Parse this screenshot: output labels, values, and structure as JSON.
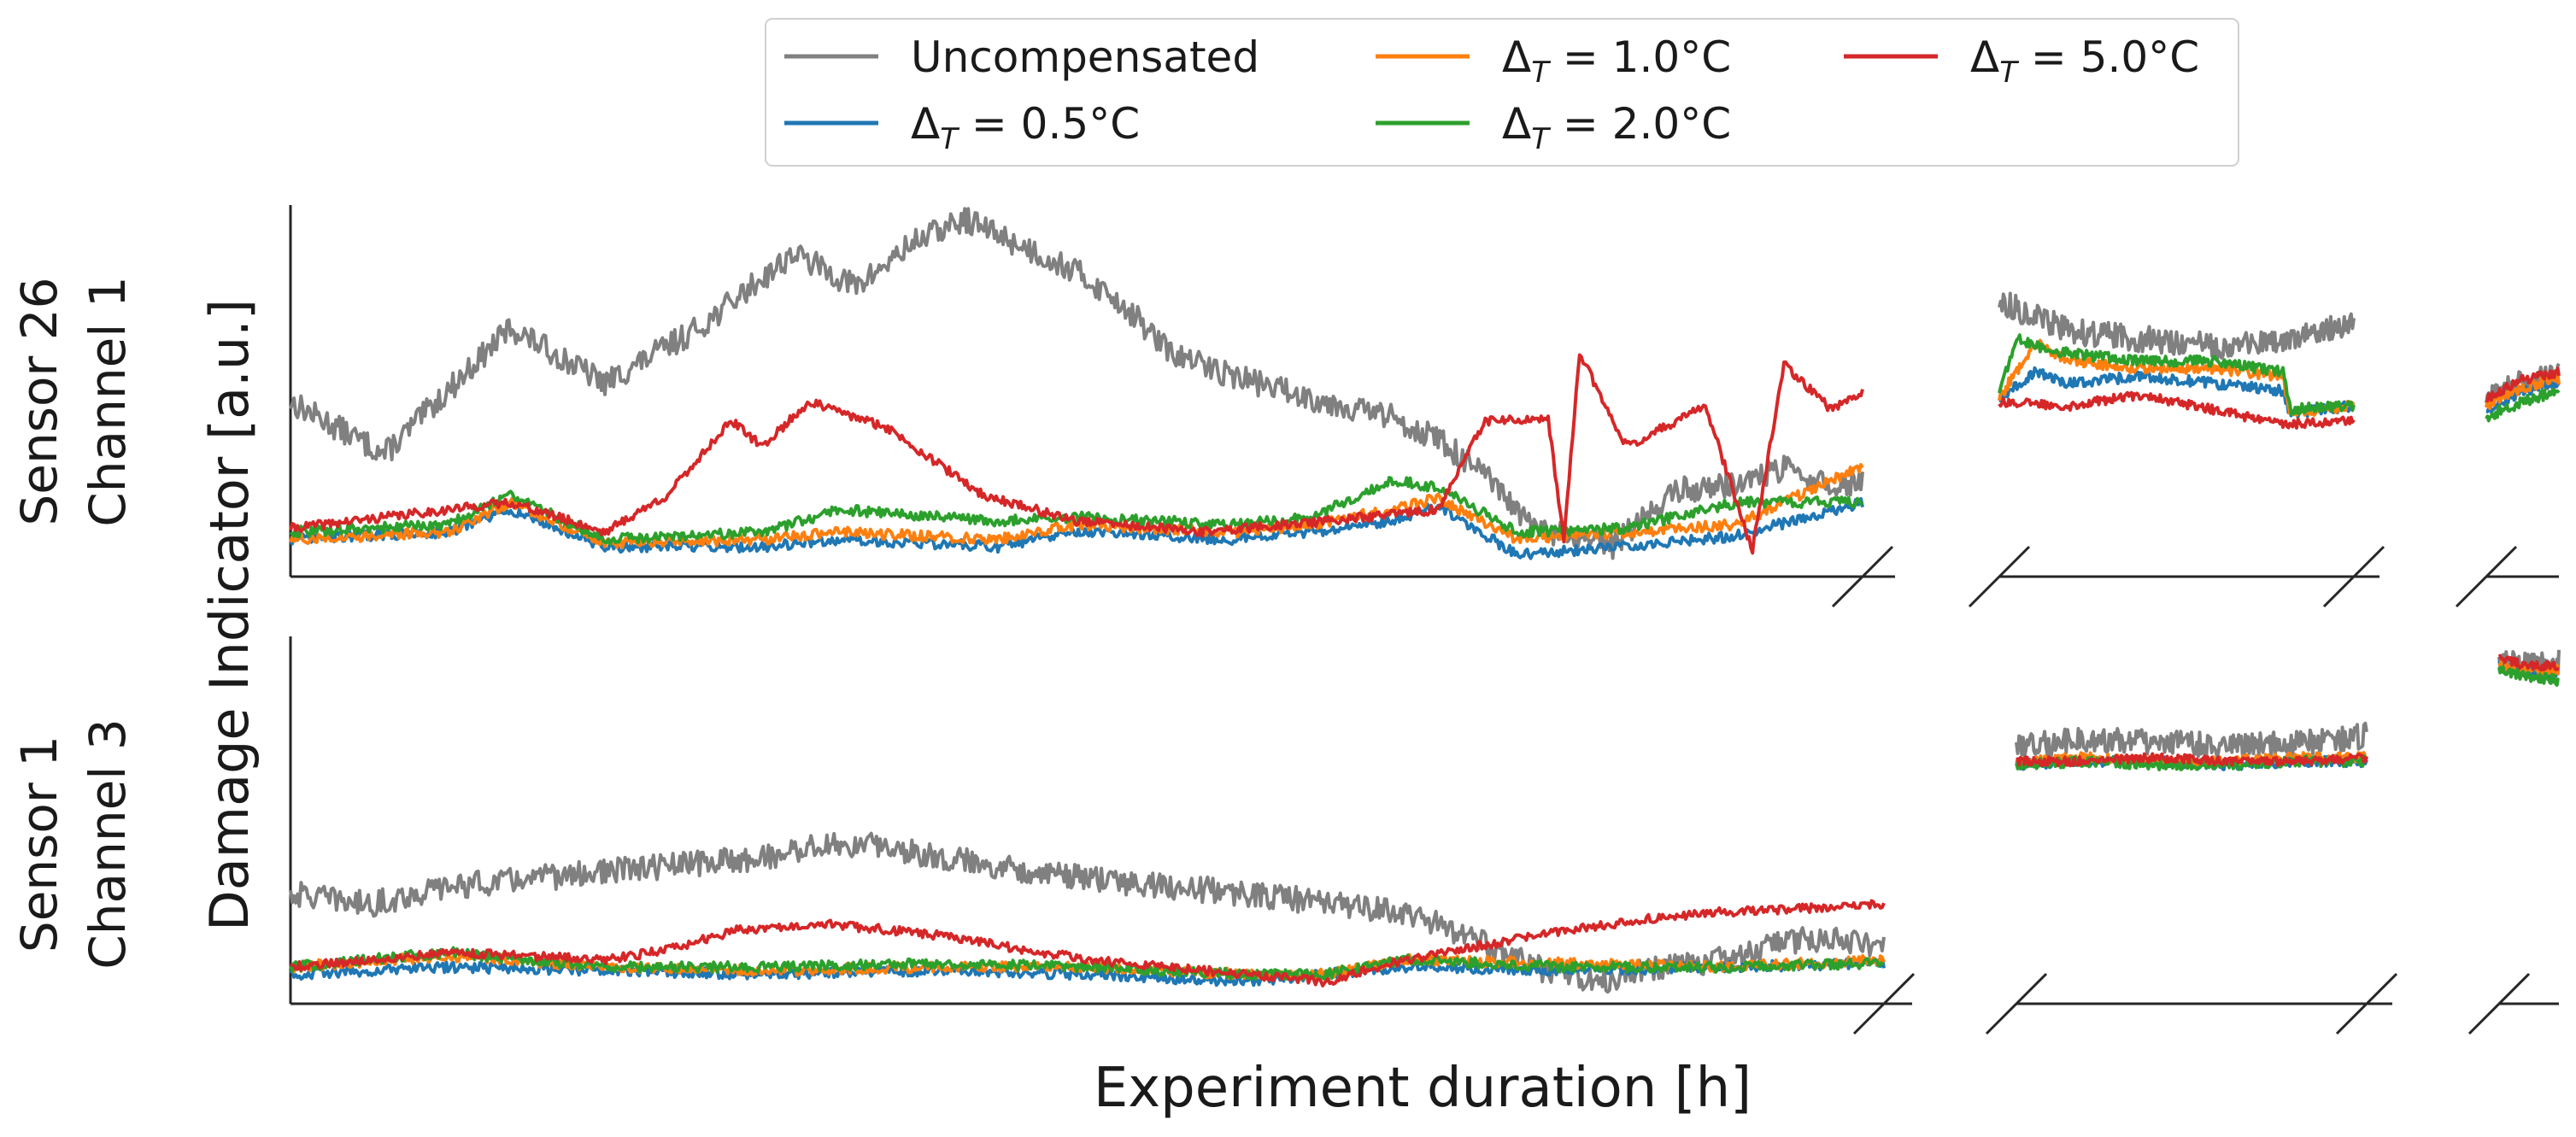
{
  "colors": {
    "uncompensated": "#808080",
    "dt05": "#1f77b4",
    "dt10": "#ff7f0e",
    "dt20": "#2ca02c",
    "dt50": "#d62728",
    "axis": "#262626"
  },
  "figure": {
    "xlabel": "Experiment duration [h]",
    "ylabel": "Damage Indicator [a.u.]",
    "legend": [
      {
        "key": "unc",
        "label": "Uncompensated",
        "color": "#808080"
      },
      {
        "key": "d05",
        "label": "ΔT = 0.5°C",
        "sym": "Δ",
        "sub": "T",
        "rest": " = 0.5°C",
        "color": "#1f77b4"
      },
      {
        "key": "d10",
        "label": "ΔT = 1.0°C",
        "sym": "Δ",
        "sub": "T",
        "rest": " = 1.0°C",
        "color": "#ff7f0e"
      },
      {
        "key": "d20",
        "label": "ΔT = 2.0°C",
        "sym": "Δ",
        "sub": "T",
        "rest": " = 2.0°C",
        "color": "#2ca02c"
      },
      {
        "key": "d50",
        "label": "ΔT = 5.0°C",
        "sym": "Δ",
        "sub": "T",
        "rest": " = 5.0°C",
        "color": "#d62728"
      }
    ]
  },
  "chart_data": [
    {
      "type": "line",
      "title": "",
      "row_label": [
        "Sensor 26",
        "Channel 1"
      ],
      "xlabel": "Experiment duration [h]",
      "ylabel": "Damage Indicator [a.u.]",
      "x_ticks": [],
      "y_ticks": [],
      "ylim": [
        0,
        1
      ],
      "x_axis": "broken into 3 segments",
      "segments": [
        {
          "name": "segment-1",
          "series": [
            {
              "name": "Uncompensated",
              "key": "unc",
              "x": [
                0,
                0.06,
                0.14,
                0.2,
                0.26,
                0.32,
                0.36,
                0.4,
                0.43,
                0.47,
                0.5,
                0.53,
                0.56,
                0.6,
                0.65,
                0.7,
                0.73,
                0.76,
                0.79,
                0.81,
                0.84,
                0.88,
                0.92,
                0.95,
                0.98,
                1.0
              ],
              "y": [
                0.47,
                0.33,
                0.67,
                0.52,
                0.67,
                0.87,
                0.78,
                0.91,
                0.96,
                0.88,
                0.82,
                0.73,
                0.6,
                0.54,
                0.48,
                0.43,
                0.37,
                0.27,
                0.13,
                0.11,
                0.08,
                0.23,
                0.25,
                0.29,
                0.24,
                0.26
              ]
            },
            {
              "name": "ΔT = 0.5°C",
              "key": "d05",
              "x": [
                0,
                0.1,
                0.14,
                0.2,
                0.3,
                0.35,
                0.45,
                0.5,
                0.6,
                0.65,
                0.7,
                0.73,
                0.78,
                0.85,
                0.92,
                1.0
              ],
              "y": [
                0.1,
                0.12,
                0.18,
                0.08,
                0.08,
                0.1,
                0.08,
                0.12,
                0.1,
                0.12,
                0.15,
                0.19,
                0.06,
                0.08,
                0.11,
                0.2
              ]
            },
            {
              "name": "ΔT = 1.0°C",
              "key": "d10",
              "x": [
                0,
                0.1,
                0.14,
                0.2,
                0.3,
                0.35,
                0.45,
                0.5,
                0.6,
                0.65,
                0.7,
                0.73,
                0.78,
                0.85,
                0.92,
                1.0
              ],
              "y": [
                0.1,
                0.12,
                0.2,
                0.09,
                0.1,
                0.12,
                0.1,
                0.14,
                0.12,
                0.14,
                0.18,
                0.21,
                0.1,
                0.12,
                0.14,
                0.3
              ]
            },
            {
              "name": "ΔT = 2.0°C",
              "key": "d20",
              "x": [
                0,
                0.1,
                0.14,
                0.2,
                0.3,
                0.35,
                0.45,
                0.5,
                0.6,
                0.65,
                0.7,
                0.73,
                0.78,
                0.85,
                0.92,
                1.0
              ],
              "y": [
                0.12,
                0.14,
                0.22,
                0.1,
                0.12,
                0.18,
                0.15,
                0.16,
                0.14,
                0.16,
                0.26,
                0.24,
                0.12,
                0.13,
                0.2,
                0.2
              ]
            },
            {
              "name": "ΔT = 5.0°C",
              "key": "d50",
              "x": [
                0,
                0.1,
                0.14,
                0.2,
                0.24,
                0.28,
                0.3,
                0.33,
                0.38,
                0.44,
                0.5,
                0.58,
                0.66,
                0.73,
                0.76,
                0.8,
                0.81,
                0.82,
                0.85,
                0.9,
                0.93,
                0.95,
                0.98,
                1.0
              ],
              "y": [
                0.13,
                0.18,
                0.2,
                0.12,
                0.22,
                0.42,
                0.35,
                0.47,
                0.4,
                0.22,
                0.15,
                0.12,
                0.15,
                0.18,
                0.42,
                0.42,
                0.1,
                0.6,
                0.35,
                0.46,
                0.07,
                0.57,
                0.45,
                0.5
              ]
            }
          ]
        },
        {
          "name": "segment-2",
          "series": [
            {
              "name": "Uncompensated",
              "key": "unc",
              "x": [
                0,
                0.2,
                0.4,
                0.6,
                0.8,
                1.0
              ],
              "y": [
                0.74,
                0.66,
                0.64,
                0.62,
                0.63,
                0.69
              ]
            },
            {
              "name": "ΔT = 0.5°C",
              "key": "d05",
              "x": [
                0,
                0.1,
                0.2,
                0.4,
                0.6,
                0.8,
                0.82,
                1.0
              ],
              "y": [
                0.48,
                0.55,
                0.52,
                0.54,
                0.52,
                0.5,
                0.44,
                0.46
              ]
            },
            {
              "name": "ΔT = 1.0°C",
              "key": "d10",
              "x": [
                0,
                0.1,
                0.2,
                0.4,
                0.6,
                0.8,
                0.82,
                1.0
              ],
              "y": [
                0.48,
                0.63,
                0.58,
                0.56,
                0.56,
                0.54,
                0.44,
                0.46
              ]
            },
            {
              "name": "ΔT = 2.0°C",
              "key": "d20",
              "x": [
                0,
                0.05,
                0.1,
                0.2,
                0.4,
                0.6,
                0.8,
                0.82,
                1.0
              ],
              "y": [
                0.5,
                0.64,
                0.62,
                0.6,
                0.58,
                0.58,
                0.55,
                0.45,
                0.46
              ]
            },
            {
              "name": "ΔT = 5.0°C",
              "key": "d50",
              "x": [
                0,
                0.2,
                0.4,
                0.6,
                0.8,
                1.0
              ],
              "y": [
                0.47,
                0.46,
                0.49,
                0.45,
                0.41,
                0.42
              ]
            }
          ]
        },
        {
          "name": "segment-3",
          "series": [
            {
              "name": "Uncompensated",
              "key": "unc",
              "x": [
                0,
                0.5,
                1.0
              ],
              "y": [
                0.48,
                0.52,
                0.54
              ]
            },
            {
              "name": "ΔT = 0.5°C",
              "key": "d05",
              "x": [
                0,
                0.5,
                1.0
              ],
              "y": [
                0.45,
                0.5,
                0.52
              ]
            },
            {
              "name": "ΔT = 1.0°C",
              "key": "d10",
              "x": [
                0,
                0.5,
                1.0
              ],
              "y": [
                0.46,
                0.51,
                0.53
              ]
            },
            {
              "name": "ΔT = 2.0°C",
              "key": "d20",
              "x": [
                0,
                0.5,
                1.0
              ],
              "y": [
                0.43,
                0.47,
                0.5
              ]
            },
            {
              "name": "ΔT = 5.0°C",
              "key": "d50",
              "x": [
                0,
                0.5,
                1.0
              ],
              "y": [
                0.48,
                0.53,
                0.55
              ]
            }
          ]
        }
      ]
    },
    {
      "type": "line",
      "title": "",
      "row_label": [
        "Sensor 1",
        "Channel 3"
      ],
      "xlabel": "Experiment duration [h]",
      "ylabel": "Damage Indicator [a.u.]",
      "x_ticks": [],
      "y_ticks": [],
      "ylim": [
        0,
        1
      ],
      "x_axis": "broken into 3 segments",
      "segments": [
        {
          "name": "segment-1",
          "series": [
            {
              "name": "Uncompensated",
              "key": "unc",
              "x": [
                0,
                0.05,
                0.1,
                0.2,
                0.3,
                0.33,
                0.37,
                0.42,
                0.5,
                0.6,
                0.7,
                0.74,
                0.78,
                0.82,
                0.86,
                0.9,
                0.95,
                1.0
              ],
              "y": [
                0.3,
                0.27,
                0.32,
                0.36,
                0.4,
                0.43,
                0.43,
                0.39,
                0.34,
                0.3,
                0.25,
                0.18,
                0.1,
                0.06,
                0.1,
                0.12,
                0.18,
                0.16
              ]
            },
            {
              "name": "ΔT = 0.5°C",
              "key": "d05",
              "x": [
                0,
                0.1,
                0.2,
                0.3,
                0.4,
                0.5,
                0.6,
                0.65,
                0.7,
                0.8,
                0.9,
                1.0
              ],
              "y": [
                0.08,
                0.1,
                0.09,
                0.08,
                0.09,
                0.08,
                0.06,
                0.08,
                0.1,
                0.09,
                0.1,
                0.11
              ]
            },
            {
              "name": "ΔT = 1.0°C",
              "key": "d10",
              "x": [
                0,
                0.1,
                0.2,
                0.3,
                0.4,
                0.5,
                0.6,
                0.65,
                0.7,
                0.8,
                0.9,
                1.0
              ],
              "y": [
                0.1,
                0.13,
                0.1,
                0.09,
                0.1,
                0.1,
                0.08,
                0.08,
                0.12,
                0.11,
                0.1,
                0.12
              ]
            },
            {
              "name": "ΔT = 2.0°C",
              "key": "d20",
              "x": [
                0,
                0.1,
                0.2,
                0.3,
                0.4,
                0.5,
                0.6,
                0.65,
                0.7,
                0.8,
                0.9,
                1.0
              ],
              "y": [
                0.1,
                0.14,
                0.1,
                0.1,
                0.11,
                0.1,
                0.08,
                0.08,
                0.12,
                0.1,
                0.1,
                0.11
              ]
            },
            {
              "name": "ΔT = 5.0°C",
              "key": "d50",
              "x": [
                0,
                0.1,
                0.2,
                0.24,
                0.28,
                0.33,
                0.4,
                0.5,
                0.6,
                0.65,
                0.7,
                0.75,
                0.8,
                0.85,
                0.9,
                0.95,
                1.0
              ],
              "y": [
                0.1,
                0.14,
                0.12,
                0.15,
                0.2,
                0.22,
                0.19,
                0.12,
                0.08,
                0.06,
                0.12,
                0.16,
                0.2,
                0.23,
                0.25,
                0.26,
                0.27
              ]
            }
          ]
        },
        {
          "name": "segment-2",
          "series": [
            {
              "name": "Uncompensated",
              "key": "unc",
              "x": [
                0,
                0.2,
                0.4,
                0.6,
                0.8,
                1.0
              ],
              "y": [
                0.7,
                0.72,
                0.71,
                0.7,
                0.71,
                0.73
              ]
            },
            {
              "name": "ΔT = 0.5°C",
              "key": "d05",
              "x": [
                0,
                0.2,
                0.4,
                0.6,
                0.8,
                1.0
              ],
              "y": [
                0.65,
                0.66,
                0.66,
                0.65,
                0.66,
                0.66
              ]
            },
            {
              "name": "ΔT = 1.0°C",
              "key": "d10",
              "x": [
                0,
                0.2,
                0.4,
                0.6,
                0.8,
                1.0
              ],
              "y": [
                0.66,
                0.67,
                0.66,
                0.66,
                0.67,
                0.67
              ]
            },
            {
              "name": "ΔT = 2.0°C",
              "key": "d20",
              "x": [
                0,
                0.2,
                0.4,
                0.6,
                0.8,
                1.0
              ],
              "y": [
                0.65,
                0.66,
                0.65,
                0.65,
                0.66,
                0.66
              ]
            },
            {
              "name": "ΔT = 5.0°C",
              "key": "d50",
              "x": [
                0,
                0.2,
                0.4,
                0.6,
                0.8,
                1.0
              ],
              "y": [
                0.66,
                0.66,
                0.67,
                0.66,
                0.66,
                0.67
              ]
            }
          ]
        },
        {
          "name": "segment-3",
          "series": [
            {
              "name": "Uncompensated",
              "key": "unc",
              "x": [
                0,
                0.5,
                1.0
              ],
              "y": [
                0.93,
                0.92,
                0.93
              ]
            },
            {
              "name": "ΔT = 0.5°C",
              "key": "d05",
              "x": [
                0,
                0.5,
                1.0
              ],
              "y": [
                0.92,
                0.9,
                0.9
              ]
            },
            {
              "name": "ΔT = 1.0°C",
              "key": "d10",
              "x": [
                0,
                0.5,
                1.0
              ],
              "y": [
                0.92,
                0.91,
                0.91
              ]
            },
            {
              "name": "ΔT = 2.0°C",
              "key": "d20",
              "x": [
                0,
                0.5,
                1.0
              ],
              "y": [
                0.91,
                0.89,
                0.88
              ]
            },
            {
              "name": "ΔT = 5.0°C",
              "key": "d50",
              "x": [
                0,
                0.5,
                1.0
              ],
              "y": [
                0.94,
                0.92,
                0.92
              ]
            }
          ]
        }
      ]
    }
  ]
}
